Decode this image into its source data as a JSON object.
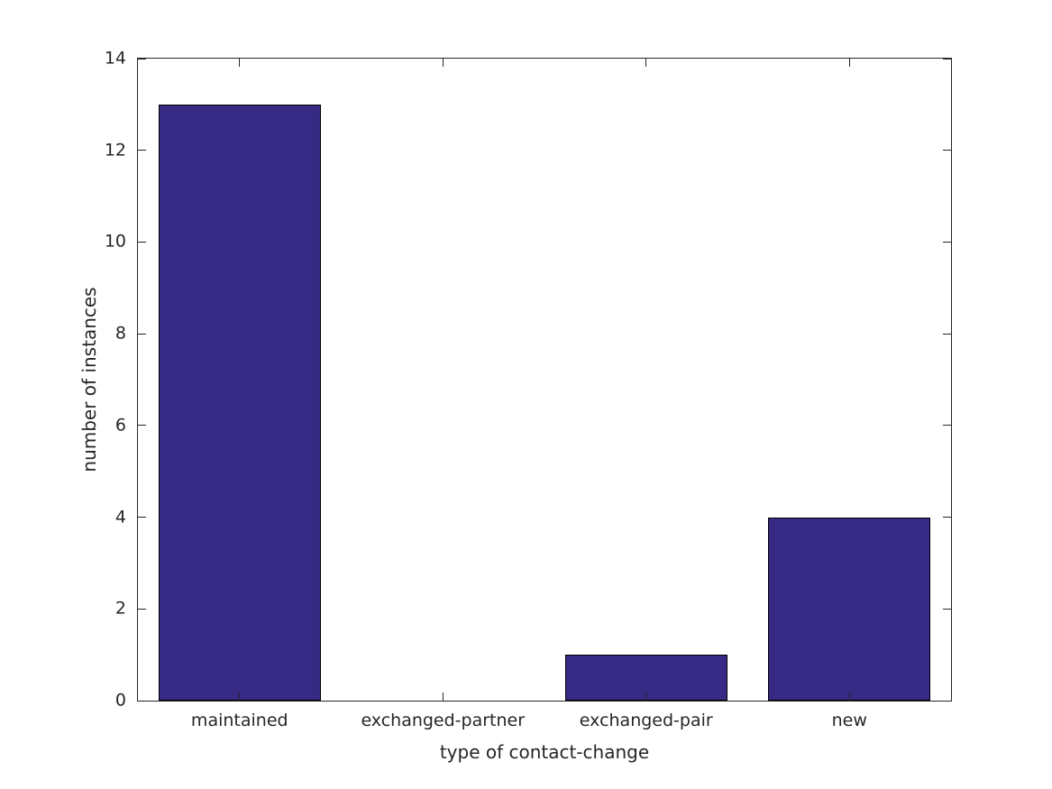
{
  "chart_data": {
    "type": "bar",
    "categories": [
      "maintained",
      "exchanged-partner",
      "exchanged-pair",
      "new"
    ],
    "values": [
      13,
      0,
      1,
      4
    ],
    "title": "",
    "xlabel": "type of contact-change",
    "ylabel": "number of instances",
    "ylim": [
      0,
      14
    ],
    "yticks": [
      0,
      2,
      4,
      6,
      8,
      10,
      12,
      14
    ],
    "bar_width_fraction": 0.8,
    "bar_color": "#362a85",
    "bar_edge_color": "#000000",
    "axis_color": "#262626",
    "text_color": "#262626",
    "background_color": "#ffffff",
    "grid": false,
    "legend": null,
    "tick_direction": "in",
    "box": true
  }
}
